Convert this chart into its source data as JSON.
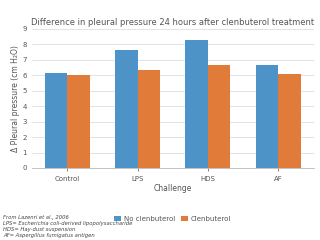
{
  "title": "Difference in pleural pressure 24 hours after clenbuterol treatment",
  "xlabel": "Challenge",
  "ylabel": "Δ Pleural pressure (cm H₂O)",
  "categories": [
    "Control",
    "LPS",
    "HDS",
    "AF"
  ],
  "no_clenbuterol": [
    6.15,
    7.6,
    8.3,
    6.65
  ],
  "clenbuterol": [
    6.0,
    6.35,
    6.65,
    6.1
  ],
  "bar_color_blue": "#4E93C8",
  "bar_color_orange": "#E07B39",
  "ylim": [
    0,
    9
  ],
  "yticks": [
    0,
    1,
    2,
    3,
    4,
    5,
    6,
    7,
    8,
    9
  ],
  "legend_labels": [
    "No clenbuterol",
    "Clenbuterol"
  ],
  "footnote_lines": [
    "From Lazenri et al., 2006",
    "LPS= Escherichia coli-derived lipopolysaccharide",
    "HDS= Hay-dust suspension",
    "AF= Aspergillus fumigatus antigen"
  ],
  "title_fontsize": 6.0,
  "axis_fontsize": 5.5,
  "tick_fontsize": 5.0,
  "legend_fontsize": 5.0,
  "footnote_fontsize": 3.8,
  "bar_width": 0.32,
  "grid_color": "#d8d8d8",
  "background_color": "#ffffff"
}
